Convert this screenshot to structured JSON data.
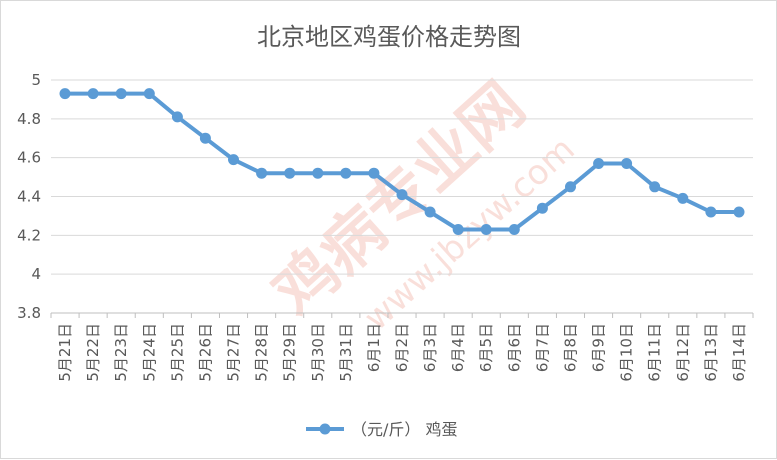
{
  "chart_data": {
    "type": "line",
    "title": "北京地区鸡蛋价格走势图",
    "categories": [
      "5月21日",
      "5月22日",
      "5月23日",
      "5月24日",
      "5月25日",
      "5月26日",
      "5月27日",
      "5月28日",
      "5月29日",
      "5月30日",
      "5月31日",
      "6月1日",
      "6月2日",
      "6月3日",
      "6月4日",
      "6月5日",
      "6月6日",
      "6月7日",
      "6月8日",
      "6月9日",
      "6月10日",
      "6月11日",
      "6月12日",
      "6月13日",
      "6月14日"
    ],
    "series": [
      {
        "name": "（元/斤） 鸡蛋",
        "color": "#5b9bd5",
        "values": [
          4.93,
          4.93,
          4.93,
          4.93,
          4.81,
          4.7,
          4.59,
          4.52,
          4.52,
          4.52,
          4.52,
          4.52,
          4.41,
          4.32,
          4.23,
          4.23,
          4.23,
          4.34,
          4.45,
          4.57,
          4.57,
          4.45,
          4.39,
          4.32,
          4.32
        ]
      }
    ],
    "yticks": [
      "3.8",
      "4",
      "4.2",
      "4.4",
      "4.6",
      "4.8",
      "5"
    ],
    "ylim": [
      3.8,
      5.0
    ],
    "grid": true,
    "legend_position": "bottom"
  },
  "watermark": {
    "main": "鸡病专业网",
    "url": "www.jbzyw.com"
  }
}
